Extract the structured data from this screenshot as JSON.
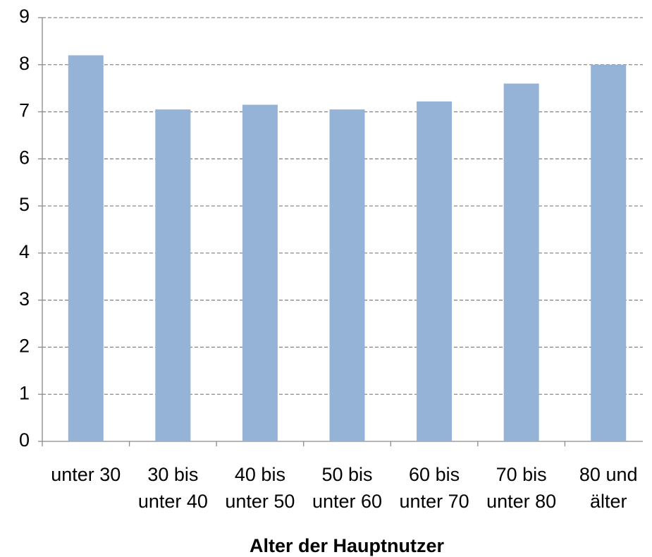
{
  "chart_data": {
    "type": "bar",
    "x_label": "Alter der Hauptnutzer",
    "categories": [
      [
        "unter 30"
      ],
      [
        "30 bis",
        "unter 40"
      ],
      [
        "40 bis",
        "unter 50"
      ],
      [
        "50 bis",
        "unter 60"
      ],
      [
        "60 bis",
        "unter 70"
      ],
      [
        "70 bis",
        "unter 80"
      ],
      [
        "80 und",
        "älter"
      ]
    ],
    "values": [
      8.2,
      7.05,
      7.15,
      7.05,
      7.22,
      7.6,
      8.0
    ],
    "color": "#95b3d7",
    "ylim": [
      0,
      9
    ],
    "yticks": [
      0,
      1,
      2,
      3,
      4,
      5,
      6,
      7,
      8,
      9
    ],
    "grid": true
  }
}
